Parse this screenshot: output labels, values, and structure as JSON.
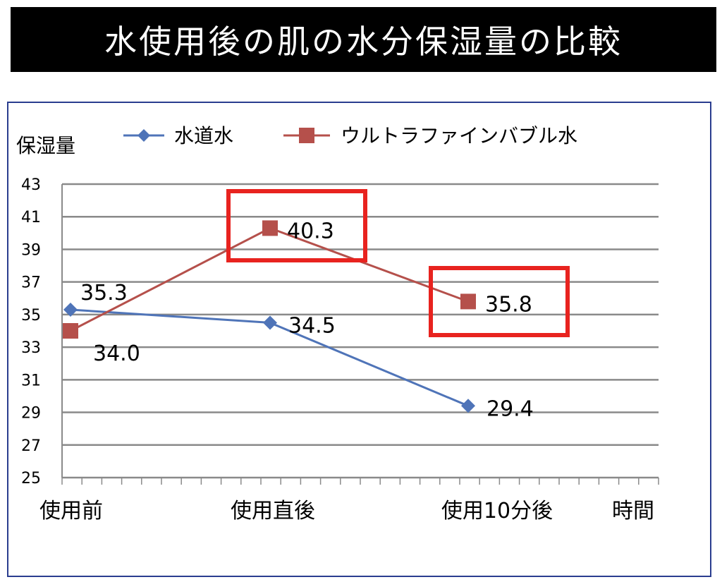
{
  "title": "水使用後の肌の水分保湿量の比較",
  "chart_data": {
    "type": "line",
    "ylabel": "保湿量",
    "xlabel": "時間",
    "categories": [
      "使用前",
      "使用直後",
      "使用10分後"
    ],
    "ylim": [
      25,
      43
    ],
    "yticks": [
      25,
      27,
      29,
      31,
      33,
      35,
      37,
      39,
      41,
      43
    ],
    "grid": true,
    "legend_position": "top",
    "series": [
      {
        "name": "水道水",
        "values": [
          35.3,
          34.5,
          29.4
        ],
        "labels": [
          "35.3",
          "34.5",
          "29.4"
        ],
        "color": "#4f74b8",
        "marker": "diamond"
      },
      {
        "name": "ウルトラファインバブル水",
        "values": [
          34.0,
          40.3,
          35.8
        ],
        "labels": [
          "34.0",
          "40.3",
          "35.8"
        ],
        "color": "#b5504b",
        "marker": "square"
      }
    ],
    "highlights": [
      {
        "series": "ウルトラファインバブル水",
        "category": "使用直後",
        "color": "#e8231f"
      },
      {
        "series": "ウルトラファインバブル水",
        "category": "使用10分後",
        "color": "#e8231f"
      }
    ]
  }
}
